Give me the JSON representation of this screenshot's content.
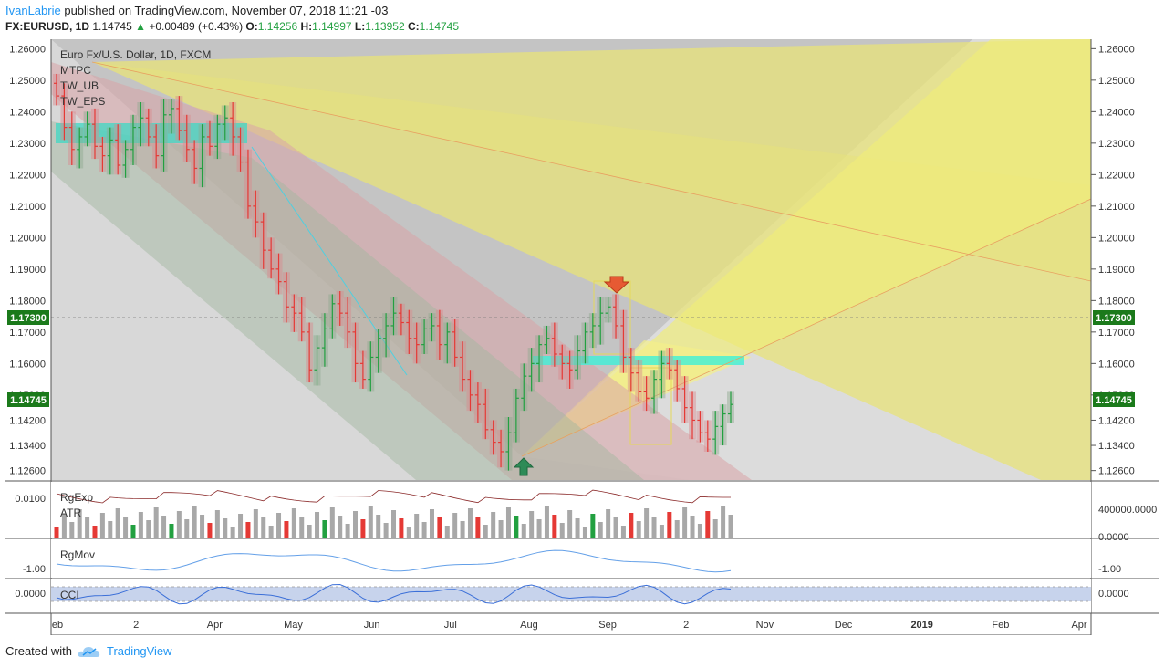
{
  "header": {
    "author": "IvanLabrie",
    "published_text": "published on TradingView.com, November 07, 2018 11:21 -03",
    "symbol": "FX:EURUSD, 1D",
    "last": "1.14745",
    "change": "+0.00489 (+0.43%)",
    "o_label": "O:",
    "o_value": "1.14256",
    "h_label": "H:",
    "h_value": "1.14997",
    "l_label": "L:",
    "l_value": "1.13952",
    "c_label": "C:",
    "c_value": "1.14745"
  },
  "legend": {
    "title": "Euro Fx/U.S. Dollar, 1D, FXCM",
    "studies": [
      "MTPC",
      "TW_UB",
      "TW_EPS"
    ]
  },
  "panes": {
    "rgexp_labels": [
      "RgExp",
      "ATR"
    ],
    "rgmov_label": "RgMov",
    "cci_label": "CCI",
    "vol_left_tick": "0.0100",
    "vol_right_ticks": [
      "400000.0000",
      "0.0000"
    ],
    "rgmov_ticks": [
      "-1.00"
    ],
    "cci_ticks": [
      "0.0000"
    ]
  },
  "price_badges": {
    "level": "1.17300",
    "last": "1.14745"
  },
  "footer": {
    "created_with": "Created with",
    "brand": "TradingView"
  },
  "colors": {
    "up": "#22a040",
    "down": "#e53935",
    "badge": "#1b7a1b",
    "accent": "#2196f3"
  },
  "chart_data": {
    "type": "bar",
    "title": "Euro Fx/U.S. Dollar, 1D, FXCM",
    "symbol": "EURUSD",
    "timeframe": "1D",
    "y_ticks": [
      "1.26000",
      "1.25000",
      "1.24000",
      "1.23000",
      "1.22000",
      "1.21000",
      "1.20000",
      "1.19000",
      "1.18000",
      "1.17000",
      "1.16000",
      "1.15000",
      "1.14200",
      "1.13400",
      "1.12600"
    ],
    "ylim": [
      1.123,
      1.263
    ],
    "x_ticks": [
      "eb",
      "2",
      "Apr",
      "May",
      "Jun",
      "Jul",
      "Aug",
      "Sep",
      "2",
      "Nov",
      "Dec",
      "2019",
      "Feb",
      "Apr"
    ],
    "close_series": [
      1.245,
      1.235,
      1.228,
      1.232,
      1.236,
      1.229,
      1.226,
      1.231,
      1.223,
      1.228,
      1.235,
      1.238,
      1.232,
      1.226,
      1.239,
      1.241,
      1.234,
      1.228,
      1.222,
      1.232,
      1.229,
      1.236,
      1.238,
      1.232,
      1.224,
      1.21,
      1.205,
      1.196,
      1.19,
      1.186,
      1.178,
      1.176,
      1.17,
      1.158,
      1.165,
      1.171,
      1.179,
      1.176,
      1.17,
      1.16,
      1.155,
      1.162,
      1.168,
      1.172,
      1.176,
      1.173,
      1.168,
      1.166,
      1.171,
      1.172,
      1.166,
      1.17,
      1.162,
      1.155,
      1.15,
      1.147,
      1.139,
      1.135,
      1.132,
      1.138,
      1.149,
      1.156,
      1.16,
      1.166,
      1.168,
      1.163,
      1.16,
      1.158,
      1.164,
      1.17,
      1.172,
      1.176,
      1.178,
      1.172,
      1.162,
      1.157,
      1.151,
      1.149,
      1.155,
      1.16,
      1.158,
      1.152,
      1.146,
      1.142,
      1.138,
      1.136,
      1.14,
      1.144,
      1.147
    ],
    "annotations": [
      "horizontal level 1.17300",
      "sell arrow near 1.1800",
      "buy arrow near 1.1270"
    ]
  }
}
